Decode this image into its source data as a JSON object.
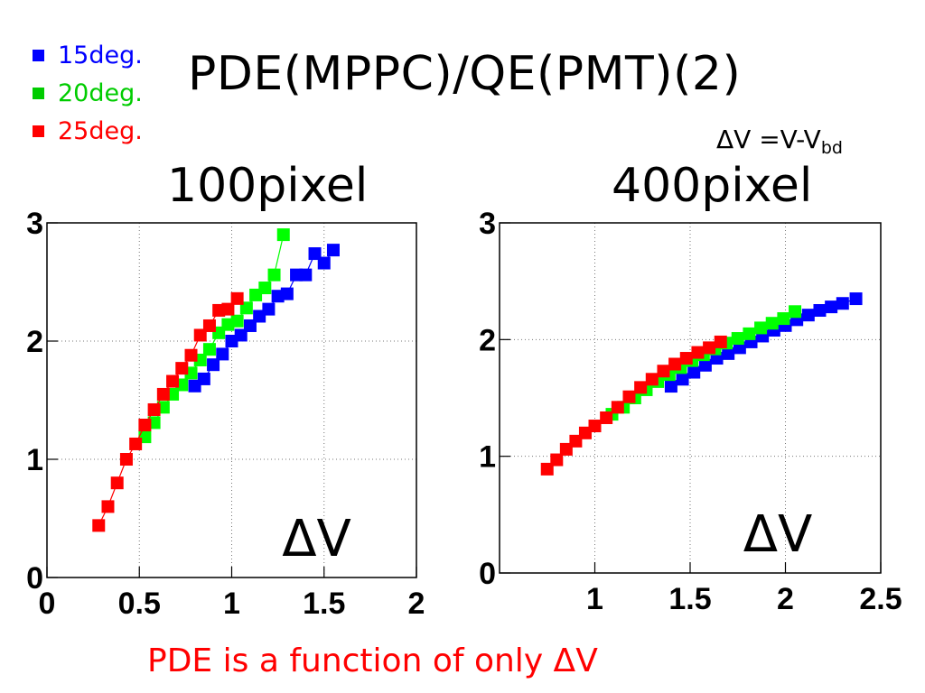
{
  "slide": {
    "title": "PDE(MPPC)/QE(PMT)(2)",
    "formula": {
      "main": "ΔV =V-V",
      "sub": "bd"
    },
    "footer": "PDE is a function of only ΔV"
  },
  "legend": [
    {
      "label": "15deg.",
      "color": "#0000ff"
    },
    {
      "label": "20deg.",
      "color": "#00cc00"
    },
    {
      "label": "25deg.",
      "color": "#ff0000"
    }
  ],
  "chart_data": [
    {
      "type": "scatter",
      "title": "100pixel",
      "xlabel": "ΔV",
      "ylabel": "",
      "xlim": [
        0,
        2
      ],
      "ylim": [
        0,
        3
      ],
      "xticks": [
        0,
        0.5,
        1,
        1.5,
        2
      ],
      "xtick_labels": [
        "0",
        "0.5",
        "1",
        "1.5",
        "2"
      ],
      "yticks": [
        0,
        1,
        2,
        3
      ],
      "ytick_labels": [
        "0",
        "1",
        "2",
        "3"
      ],
      "grid": true,
      "series": [
        {
          "name": "15deg.",
          "color": "#0000ff",
          "points": [
            [
              0.8,
              1.62
            ],
            [
              0.85,
              1.68
            ],
            [
              0.9,
              1.8
            ],
            [
              0.95,
              1.89
            ],
            [
              1.0,
              2.0
            ],
            [
              1.05,
              2.05
            ],
            [
              1.1,
              2.13
            ],
            [
              1.15,
              2.21
            ],
            [
              1.2,
              2.27
            ],
            [
              1.25,
              2.38
            ],
            [
              1.3,
              2.4
            ],
            [
              1.35,
              2.56
            ],
            [
              1.4,
              2.56
            ],
            [
              1.45,
              2.74
            ],
            [
              1.5,
              2.66
            ],
            [
              1.55,
              2.77
            ]
          ]
        },
        {
          "name": "20deg.",
          "color": "#00ff00",
          "points": [
            [
              0.53,
              1.19
            ],
            [
              0.58,
              1.31
            ],
            [
              0.63,
              1.44
            ],
            [
              0.68,
              1.55
            ],
            [
              0.73,
              1.63
            ],
            [
              0.78,
              1.73
            ],
            [
              0.83,
              1.84
            ],
            [
              0.88,
              1.93
            ],
            [
              0.93,
              2.07
            ],
            [
              0.98,
              2.14
            ],
            [
              1.03,
              2.17
            ],
            [
              1.08,
              2.28
            ],
            [
              1.13,
              2.39
            ],
            [
              1.18,
              2.45
            ],
            [
              1.23,
              2.56
            ],
            [
              1.28,
              2.9
            ]
          ]
        },
        {
          "name": "25deg.",
          "color": "#ff0000",
          "points": [
            [
              0.28,
              0.44
            ],
            [
              0.33,
              0.6
            ],
            [
              0.38,
              0.8
            ],
            [
              0.43,
              1.0
            ],
            [
              0.48,
              1.13
            ],
            [
              0.53,
              1.29
            ],
            [
              0.58,
              1.42
            ],
            [
              0.63,
              1.55
            ],
            [
              0.68,
              1.66
            ],
            [
              0.73,
              1.77
            ],
            [
              0.78,
              1.88
            ],
            [
              0.83,
              2.05
            ],
            [
              0.88,
              2.13
            ],
            [
              0.93,
              2.26
            ],
            [
              0.98,
              2.27
            ],
            [
              1.03,
              2.36
            ]
          ]
        }
      ]
    },
    {
      "type": "scatter",
      "title": "400pixel",
      "xlabel": "ΔV",
      "ylabel": "",
      "xlim": [
        0.5,
        2.5
      ],
      "ylim": [
        0,
        3
      ],
      "xticks": [
        1,
        1.5,
        2,
        2.5
      ],
      "xtick_labels": [
        "1",
        "1.5",
        "2",
        "2.5"
      ],
      "yticks": [
        0,
        1,
        2,
        3
      ],
      "ytick_labels": [
        "0",
        "1",
        "2",
        "3"
      ],
      "grid": true,
      "series": [
        {
          "name": "15deg.",
          "color": "#0000ff",
          "points": [
            [
              1.4,
              1.6
            ],
            [
              1.46,
              1.66
            ],
            [
              1.52,
              1.72
            ],
            [
              1.58,
              1.78
            ],
            [
              1.64,
              1.84
            ],
            [
              1.7,
              1.88
            ],
            [
              1.76,
              1.93
            ],
            [
              1.82,
              1.98
            ],
            [
              1.88,
              2.03
            ],
            [
              1.94,
              2.08
            ],
            [
              2.0,
              2.12
            ],
            [
              2.06,
              2.17
            ],
            [
              2.12,
              2.21
            ],
            [
              2.18,
              2.25
            ],
            [
              2.24,
              2.28
            ],
            [
              2.3,
              2.31
            ],
            [
              2.37,
              2.35
            ]
          ]
        },
        {
          "name": "20deg.",
          "color": "#00ff00",
          "points": [
            [
              1.09,
              1.36
            ],
            [
              1.15,
              1.42
            ],
            [
              1.21,
              1.5
            ],
            [
              1.27,
              1.57
            ],
            [
              1.33,
              1.64
            ],
            [
              1.39,
              1.7
            ],
            [
              1.45,
              1.76
            ],
            [
              1.51,
              1.82
            ],
            [
              1.57,
              1.87
            ],
            [
              1.63,
              1.92
            ],
            [
              1.69,
              1.97
            ],
            [
              1.75,
              2.01
            ],
            [
              1.81,
              2.05
            ],
            [
              1.87,
              2.1
            ],
            [
              1.93,
              2.14
            ],
            [
              1.99,
              2.18
            ],
            [
              2.05,
              2.24
            ]
          ]
        },
        {
          "name": "25deg.",
          "color": "#ff0000",
          "points": [
            [
              0.75,
              0.89
            ],
            [
              0.8,
              0.97
            ],
            [
              0.85,
              1.06
            ],
            [
              0.9,
              1.13
            ],
            [
              0.95,
              1.2
            ],
            [
              1.0,
              1.26
            ],
            [
              1.06,
              1.33
            ],
            [
              1.12,
              1.42
            ],
            [
              1.18,
              1.51
            ],
            [
              1.24,
              1.59
            ],
            [
              1.3,
              1.66
            ],
            [
              1.36,
              1.73
            ],
            [
              1.42,
              1.79
            ],
            [
              1.48,
              1.84
            ],
            [
              1.54,
              1.89
            ],
            [
              1.6,
              1.93
            ],
            [
              1.66,
              1.98
            ]
          ]
        }
      ]
    }
  ]
}
